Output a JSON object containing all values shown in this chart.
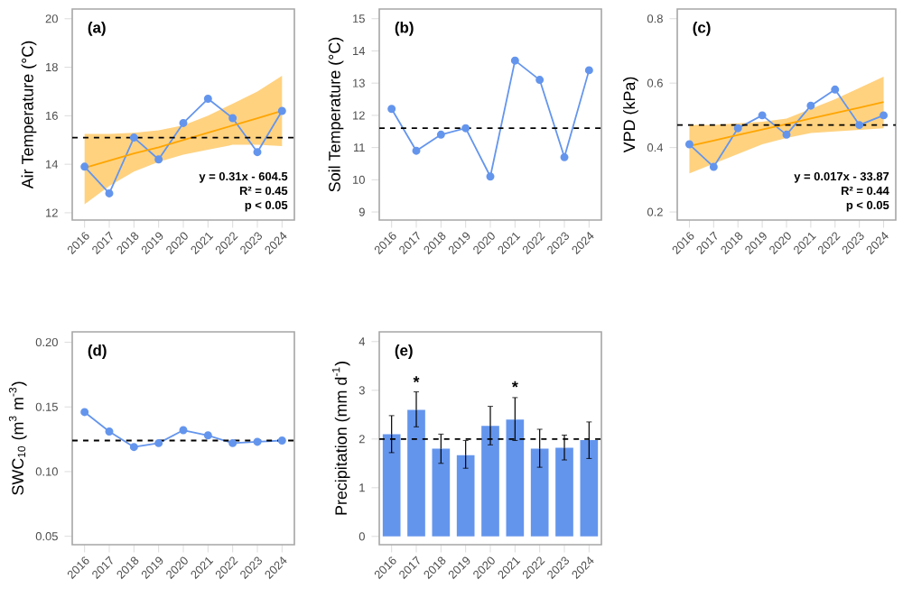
{
  "chart_data": [
    {
      "type": "line",
      "title": "(a)",
      "ylabel": "Air Temperature (°C)",
      "categories": [
        "2016",
        "2017",
        "2018",
        "2019",
        "2020",
        "2021",
        "2022",
        "2023",
        "2024"
      ],
      "marker": "circle",
      "series": [
        {
          "color": "#6495ed",
          "values": [
            13.9,
            12.8,
            15.1,
            14.2,
            15.7,
            16.7,
            15.9,
            14.5,
            16.2
          ]
        },
        {
          "color": "#ffa500",
          "marker": "none",
          "values": [
            13.85,
            14.15,
            14.45,
            14.7,
            15.0,
            15.3,
            15.6,
            15.9,
            16.2
          ],
          "lower": [
            12.35,
            13.1,
            13.7,
            14.1,
            14.4,
            14.6,
            14.8,
            14.8,
            14.75
          ],
          "upper": [
            15.25,
            15.25,
            15.3,
            15.4,
            15.6,
            16.0,
            16.5,
            17.0,
            17.65
          ]
        }
      ],
      "ylim": [
        11.7,
        20.4
      ],
      "yticks": [
        12,
        14,
        16,
        18,
        20
      ],
      "ref_lines": [
        {
          "axis": "y",
          "value": 15.1,
          "line_style": "dashed",
          "color": "#000000"
        }
      ],
      "annotations": [
        "y = 0.31x - 604.5",
        "R² = 0.45",
        "p < 0.05"
      ]
    },
    {
      "type": "line",
      "title": "(b)",
      "ylabel": "Soil Temperature (°C)",
      "categories": [
        "2016",
        "2017",
        "2018",
        "2019",
        "2020",
        "2021",
        "2022",
        "2023",
        "2024"
      ],
      "marker": "circle",
      "series": [
        {
          "color": "#6495ed",
          "values": [
            12.2,
            10.9,
            11.4,
            11.6,
            10.1,
            13.7,
            13.1,
            10.7,
            13.4
          ]
        }
      ],
      "ylim": [
        8.75,
        15.3
      ],
      "yticks": [
        9,
        10,
        11,
        12,
        13,
        14,
        15
      ],
      "ref_lines": [
        {
          "axis": "y",
          "value": 11.6,
          "line_style": "dashed",
          "color": "#000000"
        }
      ]
    },
    {
      "type": "line",
      "title": "(c)",
      "ylabel": "VPD (kPa)",
      "categories": [
        "2016",
        "2017",
        "2018",
        "2019",
        "2020",
        "2021",
        "2022",
        "2023",
        "2024"
      ],
      "marker": "circle",
      "series": [
        {
          "color": "#6495ed",
          "values": [
            0.41,
            0.34,
            0.46,
            0.5,
            0.44,
            0.53,
            0.58,
            0.47,
            0.5
          ]
        },
        {
          "color": "#ffa500",
          "marker": "none",
          "values": [
            0.405,
            0.422,
            0.439,
            0.456,
            0.473,
            0.49,
            0.507,
            0.524,
            0.541
          ],
          "lower": [
            0.32,
            0.35,
            0.38,
            0.41,
            0.43,
            0.445,
            0.45,
            0.455,
            0.46
          ],
          "upper": [
            0.47,
            0.47,
            0.475,
            0.48,
            0.49,
            0.52,
            0.55,
            0.585,
            0.62
          ]
        }
      ],
      "ylim": [
        0.175,
        0.83
      ],
      "yticks": [
        0.2,
        0.4,
        0.6,
        0.8
      ],
      "ref_lines": [
        {
          "axis": "y",
          "value": 0.47,
          "line_style": "dashed",
          "color": "#000000"
        }
      ],
      "annotations": [
        "y = 0.017x - 33.87",
        "R² = 0.44",
        "p < 0.05"
      ]
    },
    {
      "type": "line",
      "title": "(d)",
      "ylabel": "SWC$_{10}$ (m$^{3}$ m$^{-3}$)",
      "categories": [
        "2016",
        "2017",
        "2018",
        "2019",
        "2020",
        "2021",
        "2022",
        "2023",
        "2024"
      ],
      "marker": "circle",
      "series": [
        {
          "color": "#6495ed",
          "values": [
            0.146,
            0.131,
            0.119,
            0.122,
            0.132,
            0.128,
            0.122,
            0.123,
            0.124
          ]
        }
      ],
      "ylim": [
        0.0435,
        0.208
      ],
      "yticks": [
        {
          "value": 0.05,
          "label": "0.05"
        },
        {
          "value": 0.1,
          "label": "0.10"
        },
        {
          "value": 0.15,
          "label": "0.15"
        },
        {
          "value": 0.2,
          "label": "0.20"
        }
      ],
      "ref_lines": [
        {
          "axis": "y",
          "value": 0.124,
          "line_style": "dashed",
          "color": "#000000"
        }
      ]
    },
    {
      "type": "bar",
      "title": "(e)",
      "ylabel": "Precipitation (mm d$^{-1}$)",
      "categories": [
        "2016",
        "2017",
        "2018",
        "2019",
        "2020",
        "2021",
        "2022",
        "2023",
        "2024"
      ],
      "series": [
        {
          "color": "#6495ed",
          "values": [
            2.1,
            2.6,
            1.8,
            1.67,
            2.27,
            2.4,
            1.8,
            1.82,
            1.98
          ],
          "errors": [
            [
              1.72,
              2.48
            ],
            [
              2.25,
              2.97
            ],
            [
              1.5,
              2.1
            ],
            [
              1.4,
              1.97
            ],
            [
              1.88,
              2.67
            ],
            [
              1.97,
              2.85
            ],
            [
              1.42,
              2.2
            ],
            [
              1.57,
              2.08
            ],
            [
              1.6,
              2.35
            ]
          ]
        }
      ],
      "ylim": [
        -0.17,
        4.2
      ],
      "yticks": [
        0,
        1,
        2,
        3,
        4
      ],
      "ref_lines": [
        {
          "axis": "y",
          "value": 2.0,
          "line_style": "dashed",
          "color": "#000000"
        }
      ],
      "annotations": [
        {
          "text": "*",
          "x": "2017",
          "y": 3.05
        },
        {
          "text": "*",
          "x": "2021",
          "y": 2.95
        }
      ]
    }
  ]
}
